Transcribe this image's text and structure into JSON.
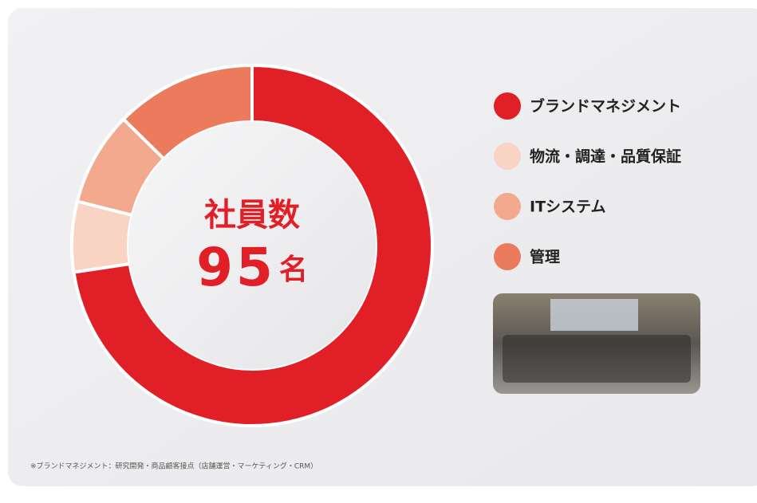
{
  "chart_data": {
    "type": "donut",
    "center_label": "社員数",
    "total": 95,
    "total_unit": "名",
    "categories": [
      "ブランドマネジメント",
      "物流・調達・品質保証",
      "ITシステム",
      "管理"
    ],
    "values": [
      69,
      6,
      8,
      12
    ],
    "colors": [
      "#e01f26",
      "#f9d3c4",
      "#f2a98e",
      "#ec7b5e"
    ],
    "footnote": "※ブランドマネジメント：研究開発・商品顧客接点（店舗運営・マーケティング・CRM）"
  }
}
